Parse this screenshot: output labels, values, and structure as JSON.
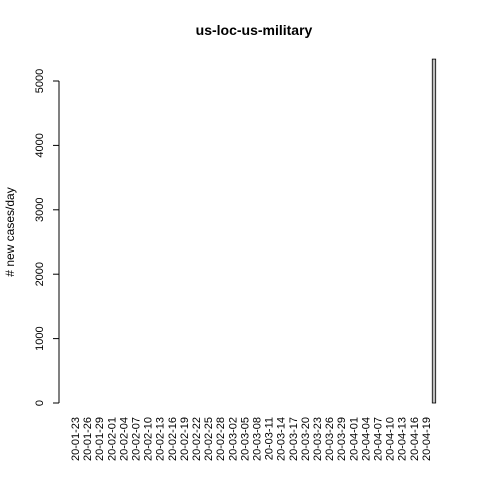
{
  "chart_data": {
    "type": "bar",
    "title": "us-loc-us-military",
    "xlabel": "",
    "ylabel": "# new cases/day",
    "ylim": [
      0,
      5400
    ],
    "yticks": [
      0,
      1000,
      2000,
      3000,
      4000,
      5000
    ],
    "xtick_labels": [
      "20-01-23",
      "20-01-26",
      "20-01-29",
      "20-02-01",
      "20-02-04",
      "20-02-07",
      "20-02-10",
      "20-02-13",
      "20-02-16",
      "20-02-19",
      "20-02-22",
      "20-02-25",
      "20-02-28",
      "20-03-02",
      "20-03-05",
      "20-03-08",
      "20-03-11",
      "20-03-14",
      "20-03-17",
      "20-03-20",
      "20-03-23",
      "20-03-26",
      "20-03-29",
      "20-04-01",
      "20-04-04",
      "20-04-07",
      "20-04-10",
      "20-04-13",
      "20-04-16",
      "20-04-19"
    ],
    "x": [
      "20-01-23",
      "20-01-24",
      "20-01-25",
      "20-01-26",
      "20-01-27",
      "20-01-28",
      "20-01-29",
      "20-01-30",
      "20-01-31",
      "20-02-01",
      "20-02-02",
      "20-02-03",
      "20-02-04",
      "20-02-05",
      "20-02-06",
      "20-02-07",
      "20-02-08",
      "20-02-09",
      "20-02-10",
      "20-02-11",
      "20-02-12",
      "20-02-13",
      "20-02-14",
      "20-02-15",
      "20-02-16",
      "20-02-17",
      "20-02-18",
      "20-02-19",
      "20-02-20",
      "20-02-21",
      "20-02-22",
      "20-02-23",
      "20-02-24",
      "20-02-25",
      "20-02-26",
      "20-02-27",
      "20-02-28",
      "20-02-29",
      "20-03-01",
      "20-03-02",
      "20-03-03",
      "20-03-04",
      "20-03-05",
      "20-03-06",
      "20-03-07",
      "20-03-08",
      "20-03-09",
      "20-03-10",
      "20-03-11",
      "20-03-12",
      "20-03-13",
      "20-03-14",
      "20-03-15",
      "20-03-16",
      "20-03-17",
      "20-03-18",
      "20-03-19",
      "20-03-20",
      "20-03-21",
      "20-03-22",
      "20-03-23",
      "20-03-24",
      "20-03-25",
      "20-03-26",
      "20-03-27",
      "20-03-28",
      "20-03-29",
      "20-03-30",
      "20-03-31",
      "20-04-01",
      "20-04-02",
      "20-04-03",
      "20-04-04",
      "20-04-05",
      "20-04-06",
      "20-04-07",
      "20-04-08",
      "20-04-09",
      "20-04-10",
      "20-04-11",
      "20-04-12",
      "20-04-13",
      "20-04-14",
      "20-04-15",
      "20-04-16",
      "20-04-17",
      "20-04-18",
      "20-04-19",
      "20-04-20",
      "20-04-21"
    ],
    "values": [
      0,
      0,
      0,
      0,
      0,
      0,
      0,
      0,
      0,
      0,
      0,
      0,
      0,
      0,
      0,
      0,
      0,
      0,
      0,
      0,
      0,
      0,
      0,
      0,
      0,
      0,
      0,
      0,
      0,
      0,
      0,
      0,
      0,
      0,
      0,
      0,
      0,
      0,
      0,
      0,
      0,
      0,
      0,
      0,
      0,
      0,
      0,
      0,
      0,
      0,
      0,
      0,
      0,
      0,
      0,
      0,
      0,
      0,
      0,
      0,
      0,
      0,
      0,
      0,
      0,
      0,
      0,
      0,
      0,
      0,
      0,
      0,
      0,
      0,
      0,
      0,
      0,
      0,
      0,
      0,
      0,
      0,
      0,
      0,
      0,
      0,
      0,
      0,
      0,
      5340
    ],
    "bar_color": "#bebebe",
    "grid": false,
    "legend": "none"
  }
}
